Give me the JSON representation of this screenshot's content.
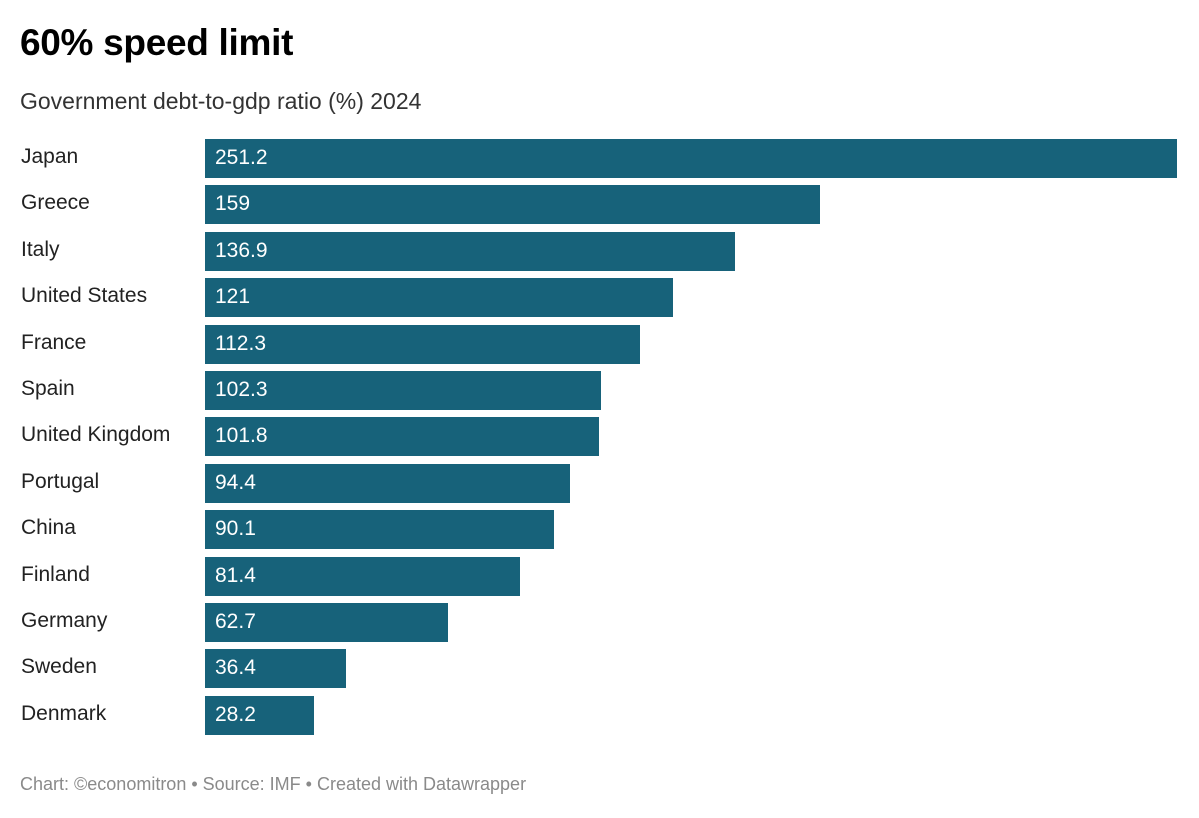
{
  "chart_data": {
    "type": "bar",
    "orientation": "horizontal",
    "title": "60% speed limit",
    "subtitle": "Government debt-to-gdp ratio (%) 2024",
    "categories": [
      "Japan",
      "Greece",
      "Italy",
      "United States",
      "France",
      "Spain",
      "United Kingdom",
      "Portugal",
      "China",
      "Finland",
      "Germany",
      "Sweden",
      "Denmark"
    ],
    "values": [
      251.2,
      159,
      136.9,
      121,
      112.3,
      102.3,
      101.8,
      94.4,
      90.1,
      81.4,
      62.7,
      36.4,
      28.2
    ],
    "xlim": [
      0,
      251.2
    ],
    "grid": false,
    "bar_color": "#17627a",
    "footer": "Chart: ©economitron • Source: IMF • Created with Datawrapper"
  }
}
